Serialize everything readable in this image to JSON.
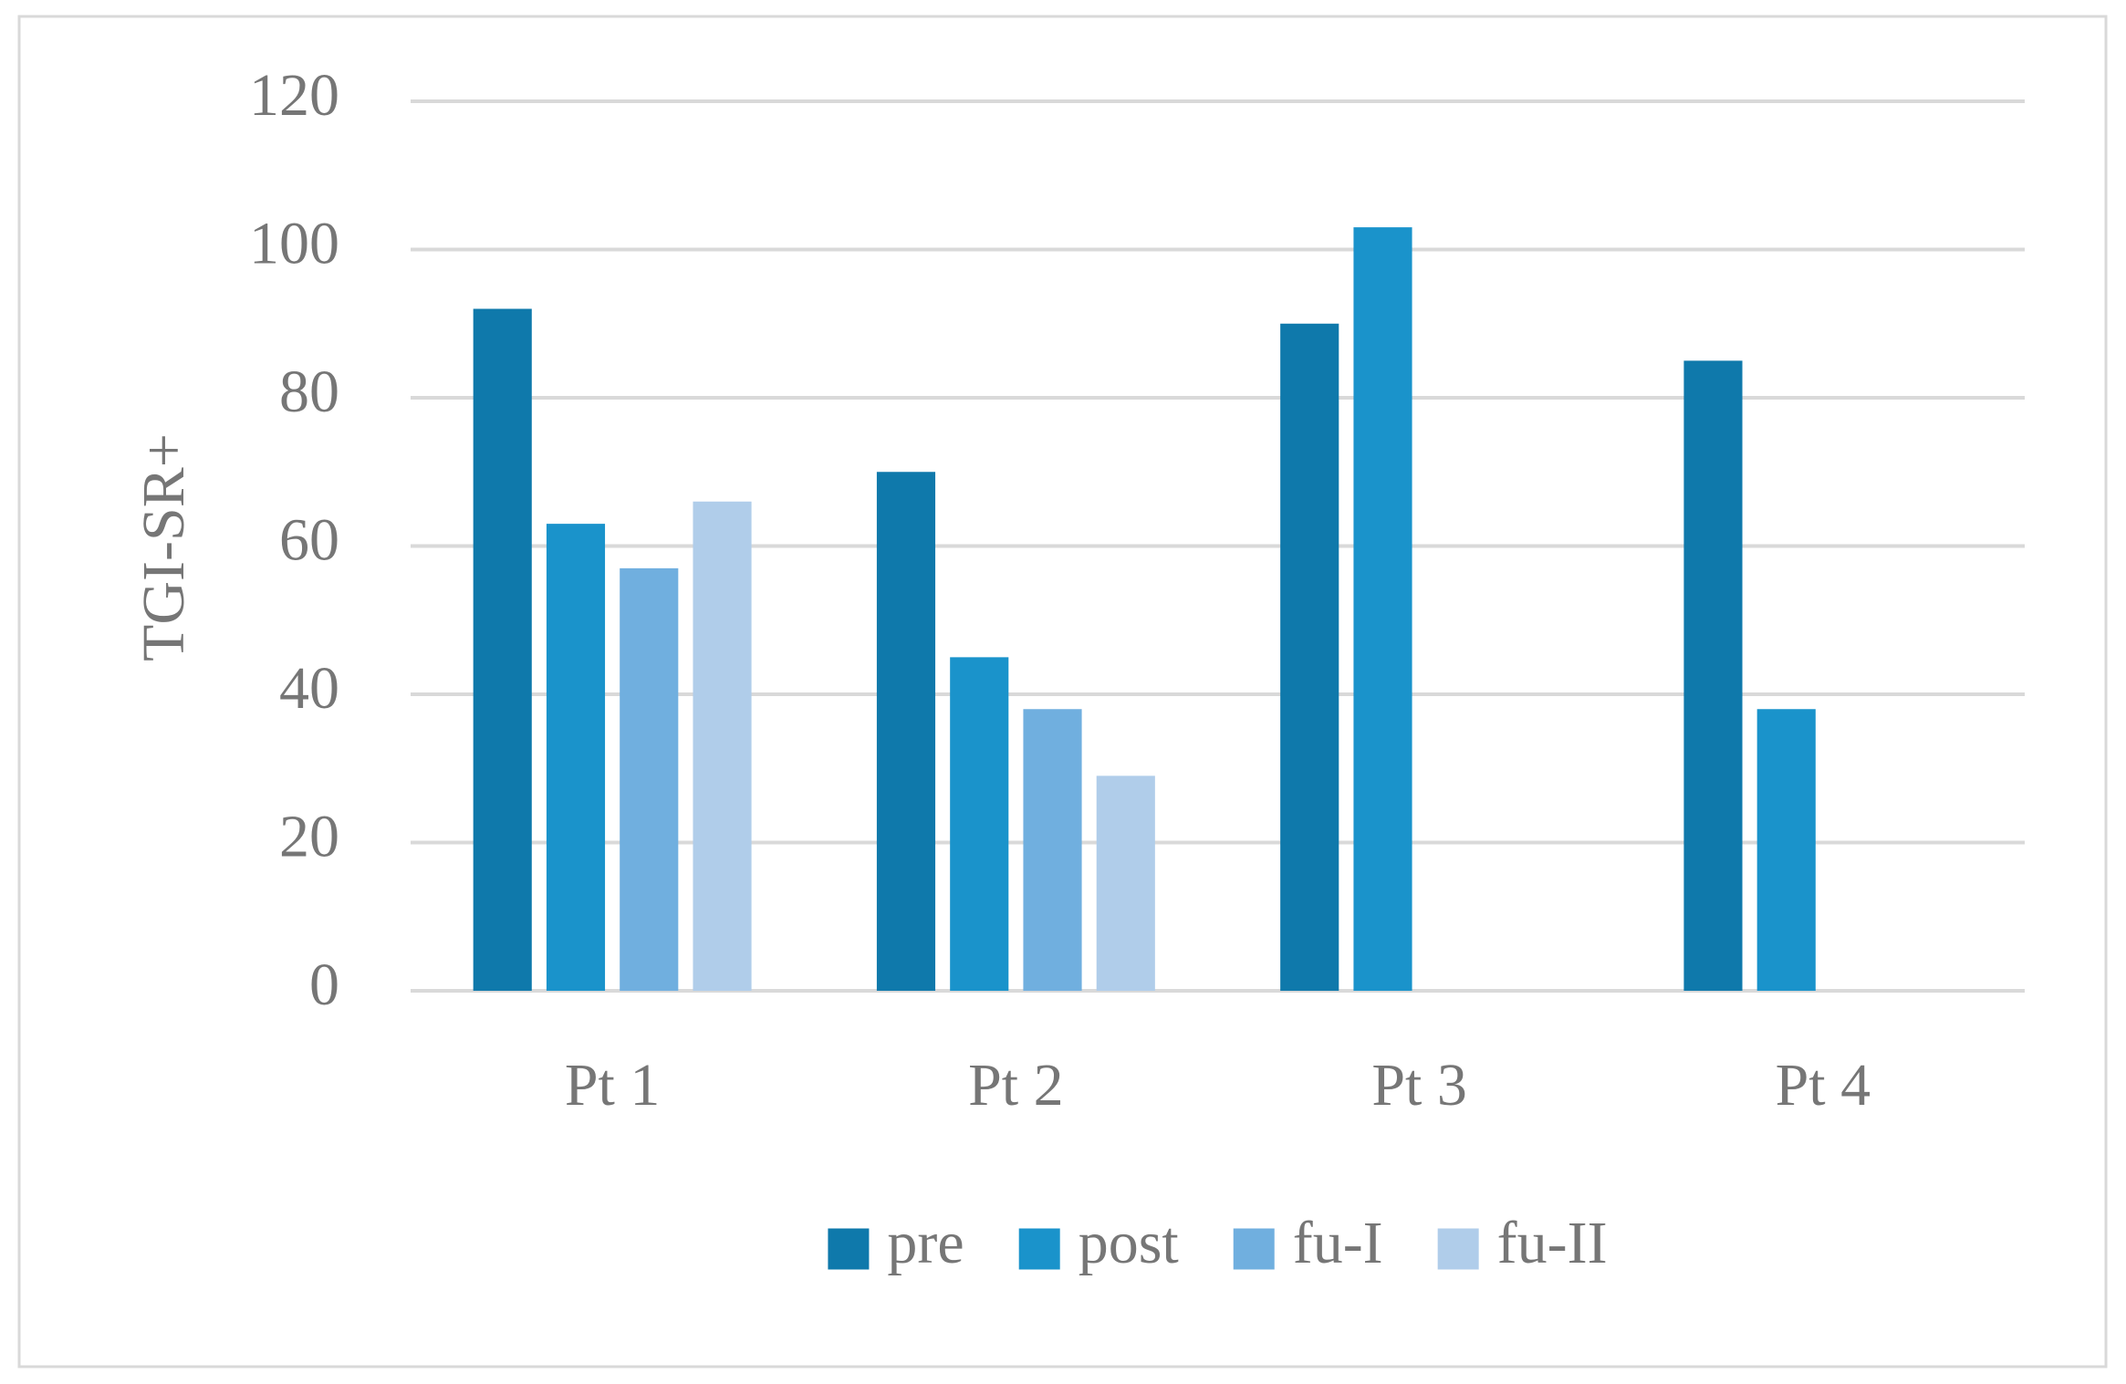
{
  "chart_data": {
    "type": "bar",
    "y_label": "TGI-SR+",
    "categories": [
      "Pt 1",
      "Pt 2",
      "Pt 3",
      "Pt 4"
    ],
    "series": [
      {
        "name": "pre",
        "color": "#0f79ab",
        "values": [
          92,
          70,
          90,
          85
        ]
      },
      {
        "name": "post",
        "color": "#1a93cb",
        "values": [
          63,
          45,
          103,
          38
        ]
      },
      {
        "name": "fu-I",
        "color": "#70afdf",
        "values": [
          57,
          38,
          null,
          null
        ]
      },
      {
        "name": "fu-II",
        "color": "#b0cdea",
        "values": [
          66,
          29,
          null,
          null
        ]
      }
    ],
    "ylim": [
      0,
      120
    ],
    "yticks": [
      0,
      20,
      40,
      60,
      80,
      100,
      120
    ],
    "grid": true,
    "legend": "bottom"
  }
}
